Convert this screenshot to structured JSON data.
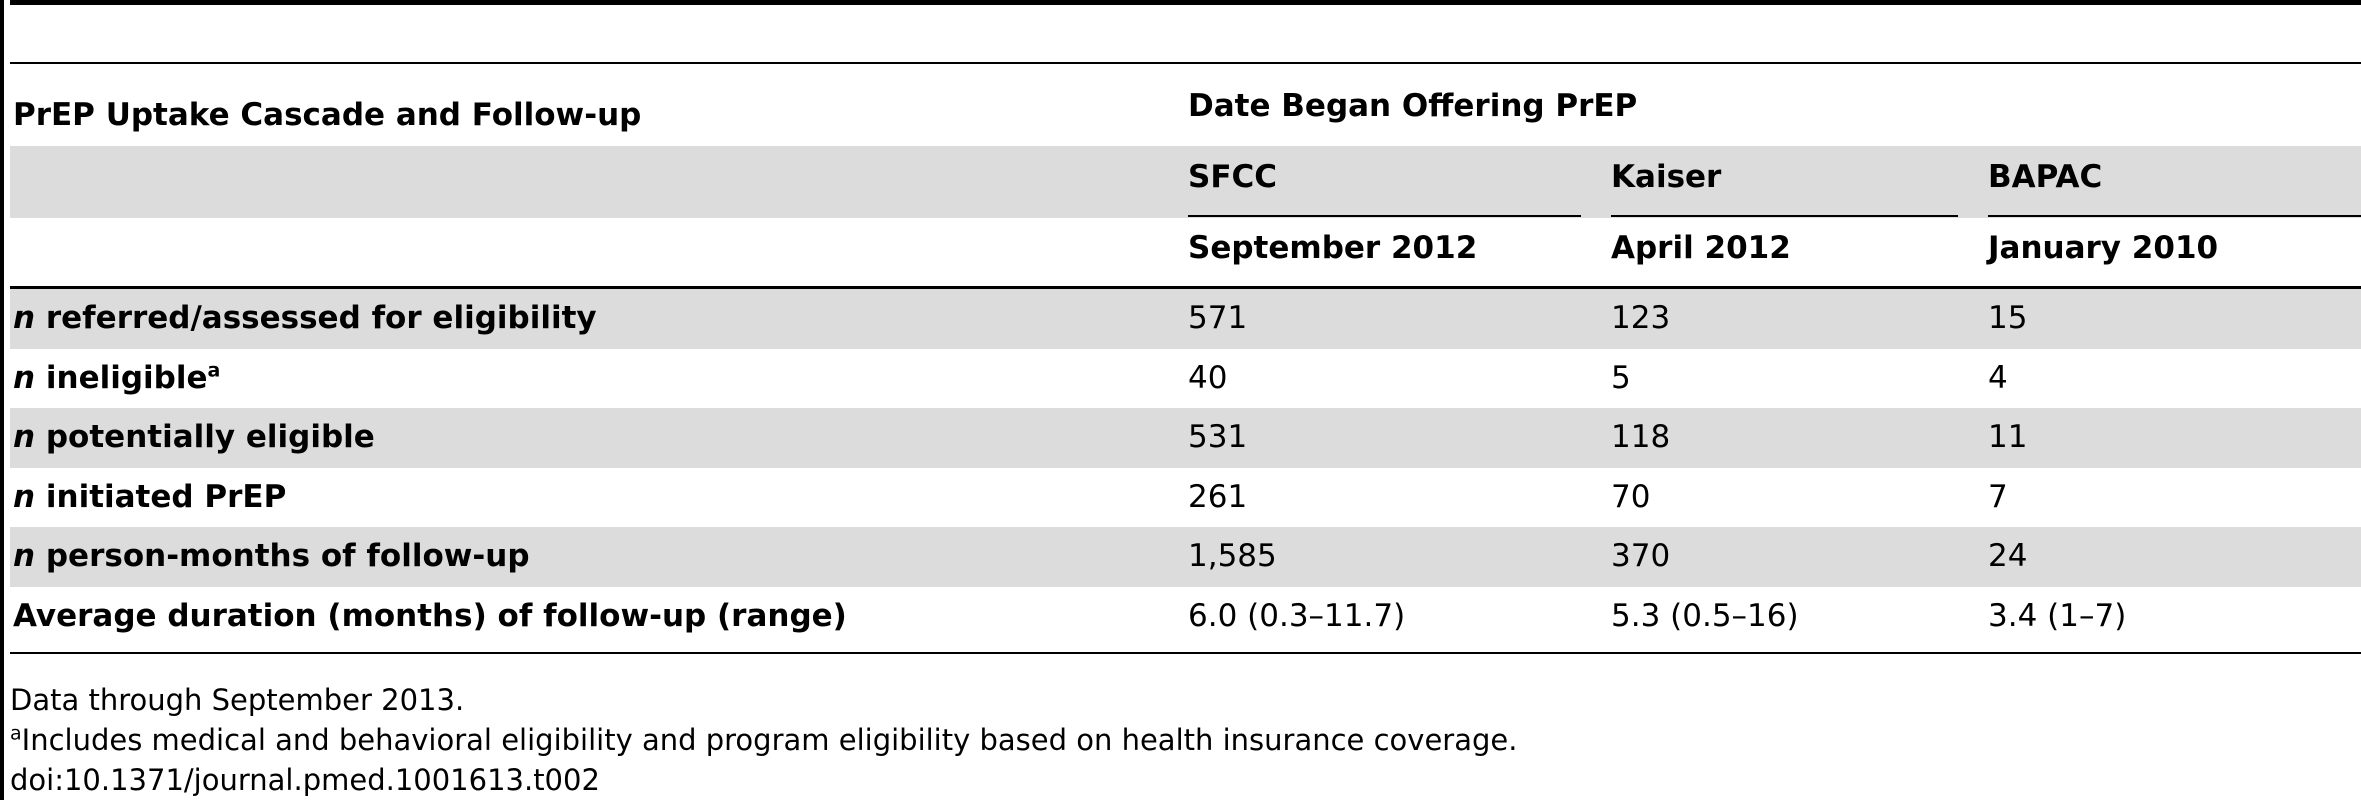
{
  "table": {
    "header_left": "PrEP Uptake Cascade and Follow-up",
    "header_group": "Date Began Offering PrEP",
    "sites": [
      {
        "name": "SFCC",
        "date": "September 2012"
      },
      {
        "name": "Kaiser",
        "date": "April 2012"
      },
      {
        "name": "BAPAC",
        "date": "January 2010"
      }
    ],
    "rows": [
      {
        "prefix": "n",
        "label": " referred/assessed for eligibility",
        "sup": "",
        "values": [
          "571",
          "123",
          "15"
        ]
      },
      {
        "prefix": "n",
        "label": " ineligible",
        "sup": "a",
        "values": [
          "40",
          "5",
          "4"
        ]
      },
      {
        "prefix": "n",
        "label": " potentially eligible",
        "sup": "",
        "values": [
          "531",
          "118",
          "11"
        ]
      },
      {
        "prefix": "n",
        "label": " initiated PrEP",
        "sup": "",
        "values": [
          "261",
          "70",
          "7"
        ]
      },
      {
        "prefix": "n",
        "label": " person-months of follow-up",
        "sup": "",
        "values": [
          "1,585",
          "370",
          "24"
        ]
      },
      {
        "prefix": "",
        "label": "Average duration (months) of follow-up (range)",
        "sup": "",
        "values": [
          "6.0 (0.3–11.7)",
          "5.3 (0.5–16)",
          "3.4 (1–7)"
        ]
      }
    ]
  },
  "footnotes": {
    "data_note": "Data through September 2013.",
    "a_marker": "a",
    "a_text": "Includes medical and behavioral eligibility and program eligibility based on health insurance coverage.",
    "doi": "doi:10.1371/journal.pmed.1001613.t002"
  }
}
